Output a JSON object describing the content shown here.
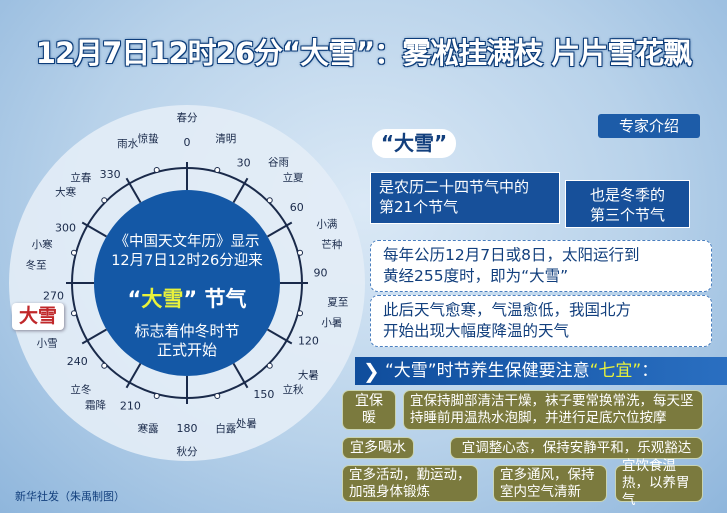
{
  "title": "12月7日12时26分“大雪”：雾凇挂满枝 片片雪花飘",
  "wheel": {
    "terms": [
      {
        "name": "春分",
        "deg": 0
      },
      {
        "name": "清明",
        "deg": 15
      },
      {
        "name": "谷雨",
        "deg": 30
      },
      {
        "name": "立夏",
        "deg": 45
      },
      {
        "name": "小满",
        "deg": 60
      },
      {
        "name": "芒种",
        "deg": 75
      },
      {
        "name": "夏至",
        "deg": 90
      },
      {
        "name": "小暑",
        "deg": 105
      },
      {
        "name": "大暑",
        "deg": 120
      },
      {
        "name": "立秋",
        "deg": 135
      },
      {
        "name": "处暑",
        "deg": 150
      },
      {
        "name": "白露",
        "deg": 165
      },
      {
        "name": "秋分",
        "deg": 180
      },
      {
        "name": "寒露",
        "deg": 195
      },
      {
        "name": "霜降",
        "deg": 210
      },
      {
        "name": "立冬",
        "deg": 225
      },
      {
        "name": "小雪",
        "deg": 240
      },
      {
        "name": "大雪",
        "deg": 255
      },
      {
        "name": "冬至",
        "deg": 270
      },
      {
        "name": "小寒",
        "deg": 285
      },
      {
        "name": "大寒",
        "deg": 300
      },
      {
        "name": "立春",
        "deg": 315
      },
      {
        "name": "雨水",
        "deg": 330
      },
      {
        "name": "惊蛰",
        "deg": 345
      }
    ],
    "degree_labels": [
      "0",
      "30",
      "60",
      "90",
      "120",
      "150",
      "180",
      "210",
      "240",
      "270",
      "300",
      "330"
    ],
    "highlight": "大雪",
    "center_line1": "《中国天文年历》显示",
    "center_line2": "12月7日12时26分迎来",
    "center_q1": "“",
    "center_name": "大雪",
    "center_q2": "”",
    "center_suffix": " 节气",
    "center_line4": "标志着仲冬时节",
    "center_line5": "正式开始"
  },
  "expert_label": "专家介绍",
  "badge": "“大雪”",
  "box1": {
    "line1": "是农历二十四节气中的",
    "line2": "第21个节气"
  },
  "box2": {
    "line1": "也是冬季的",
    "line2": "第三个节气"
  },
  "box3": {
    "line1": "每年公历12月7日或8日，太阳运行到",
    "line2": "黄经255度时，即为“大雪”"
  },
  "box4": {
    "line1": "此后天气愈寒，气温愈低，我国北方",
    "line2": "开始出现大幅度降温的天气"
  },
  "banner": {
    "prefix": "“大雪”时节养生保健要注意",
    "highlight": "“七宜”",
    "suffix": "："
  },
  "tips": {
    "t1_label": "宜保暖",
    "t1_text": "宜保持脚部清洁干燥，袜子要常换常洗，每天坚持睡前用温热水泡脚，并进行足底穴位按摩",
    "t2_label": "宜多喝水",
    "t2_text": "宜调整心态，保持安静平和，乐观豁达",
    "t3": "宜多活动，勤运动，加强身体锻炼",
    "t4": "宜多通风，保持室内空气清新",
    "t5": "宜饮食温热，以养胃气"
  },
  "footer": "新华社发（朱禹制图）",
  "colors": {
    "navy": "#17509a",
    "highlight": "#e9f23b",
    "tip_bg": "#7b7a3e",
    "callout": "#c0282a"
  }
}
